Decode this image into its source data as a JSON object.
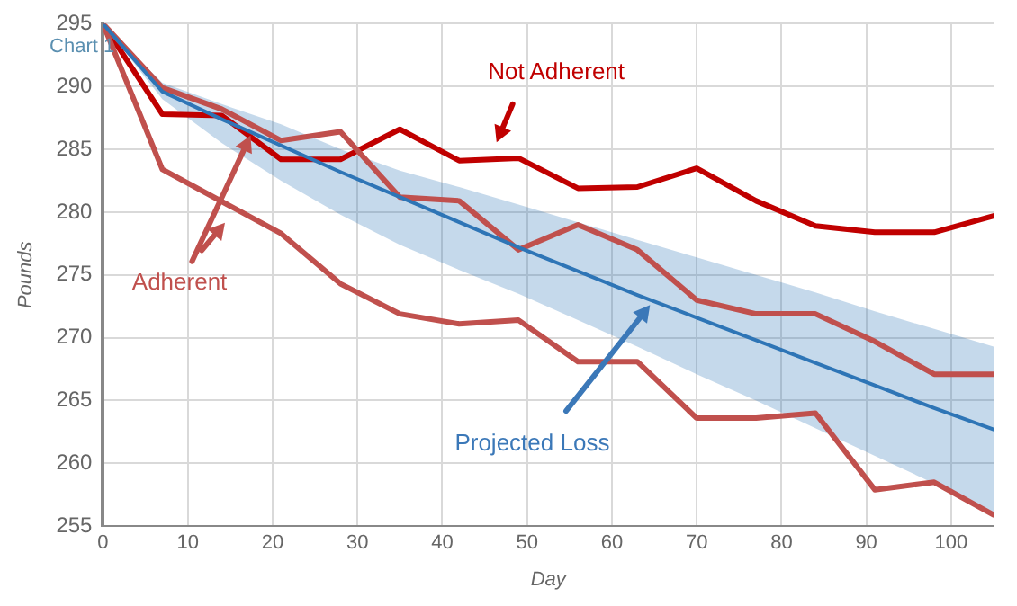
{
  "chart_data": {
    "type": "line",
    "xlabel": "Day",
    "ylabel": "Pounds",
    "xlim": [
      0,
      105
    ],
    "xticks": [
      0,
      10,
      20,
      30,
      40,
      50,
      60,
      70,
      80,
      90,
      100
    ],
    "ylim": [
      255,
      295
    ],
    "yticks": [
      255,
      260,
      265,
      270,
      275,
      280,
      285,
      290,
      295
    ],
    "grid": true,
    "legend": false,
    "marker": "none",
    "line_style": "solid",
    "series": [
      {
        "color": "#2e75b6",
        "x": [
          0,
          7,
          14,
          21,
          28,
          35,
          42,
          49,
          56,
          63,
          70,
          77,
          84,
          91,
          98,
          105
        ],
        "values": [
          295,
          289.6,
          287.4,
          285.3,
          283.2,
          281.2,
          279.2,
          277.2,
          275.3,
          273.4,
          271.6,
          269.8,
          268.0,
          266.2,
          264.4,
          262.7
        ],
        "lower": [
          295,
          289.0,
          285.5,
          282.5,
          279.8,
          277.4,
          275.4,
          273.5,
          271.4,
          269.3,
          267.1,
          265.0,
          262.8,
          260.6,
          258.4,
          256.0
        ],
        "upper": [
          295,
          290.3,
          288.6,
          287.0,
          285.0,
          283.3,
          282.0,
          280.6,
          279.2,
          277.8,
          276.4,
          275.0,
          273.6,
          272.1,
          270.7,
          269.3
        ]
      },
      {
        "color": "#c0504d",
        "x": [
          0,
          7,
          14,
          21,
          28,
          35,
          42,
          49,
          56,
          63,
          70,
          77,
          84,
          91,
          98,
          105
        ],
        "values": [
          295,
          289.9,
          288.2,
          285.7,
          286.4,
          281.2,
          280.9,
          277.0,
          279.0,
          277.0,
          273.0,
          271.9,
          271.9,
          269.7,
          267.1,
          267.1
        ]
      },
      {
        "color": "#c0504d",
        "x": [
          0,
          7,
          21,
          28,
          35,
          42,
          49,
          56,
          63,
          70,
          77,
          84,
          91,
          98,
          105
        ],
        "values": [
          295,
          283.4,
          278.3,
          274.3,
          271.9,
          271.1,
          271.4,
          268.1,
          268.1,
          263.6,
          263.6,
          264.0,
          257.9,
          258.5,
          255.9
        ]
      },
      {
        "color": "#c00000",
        "x": [
          0,
          7,
          14,
          21,
          28,
          35,
          42,
          49,
          56,
          63,
          70,
          77,
          84,
          91,
          98,
          105
        ],
        "values": [
          295,
          287.8,
          287.7,
          284.2,
          284.2,
          286.6,
          284.1,
          284.3,
          281.9,
          282.0,
          283.5,
          280.9,
          278.9,
          278.4,
          278.4,
          279.7
        ]
      }
    ],
    "annotations": [
      "Chart 1",
      "Not Adherent",
      {
        "text": "Adherent",
        "x": 17.4,
        "y": 286.1
      },
      {
        "text": "Projected Loss",
        "x": 64.5,
        "y": 272.6
      }
    ]
  }
}
